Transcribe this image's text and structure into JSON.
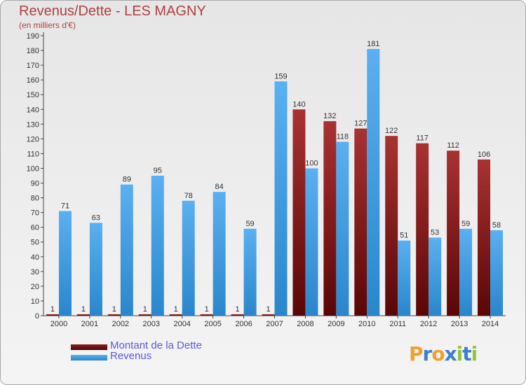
{
  "title": "Revenus/Dette - LES MAGNY",
  "subtitle": "(en milliers d'€)",
  "logo": "Proxiti",
  "colors": {
    "dette": "#7a1414",
    "revenus": "#3b9ee6",
    "title": "#b04040",
    "legend_text": "#5a5adc"
  },
  "chart_data": {
    "type": "bar",
    "categories": [
      "2000",
      "2001",
      "2002",
      "2003",
      "2004",
      "2005",
      "2006",
      "2007",
      "2008",
      "2009",
      "2010",
      "2011",
      "2012",
      "2013",
      "2014"
    ],
    "series": [
      {
        "name": "Montant de la Dette",
        "values": [
          1,
          1,
          1,
          1,
          1,
          1,
          1,
          1,
          140,
          132,
          127,
          122,
          117,
          112,
          106
        ]
      },
      {
        "name": "Revenus",
        "values": [
          71,
          63,
          89,
          95,
          78,
          84,
          59,
          159,
          100,
          118,
          181,
          51,
          53,
          59,
          58
        ]
      }
    ],
    "yticks": [
      0,
      10,
      20,
      30,
      40,
      50,
      60,
      70,
      80,
      90,
      100,
      110,
      120,
      130,
      140,
      150,
      160,
      170,
      180,
      190
    ],
    "ylim": [
      0,
      190
    ],
    "grid": false,
    "legend": "bottom-left"
  }
}
